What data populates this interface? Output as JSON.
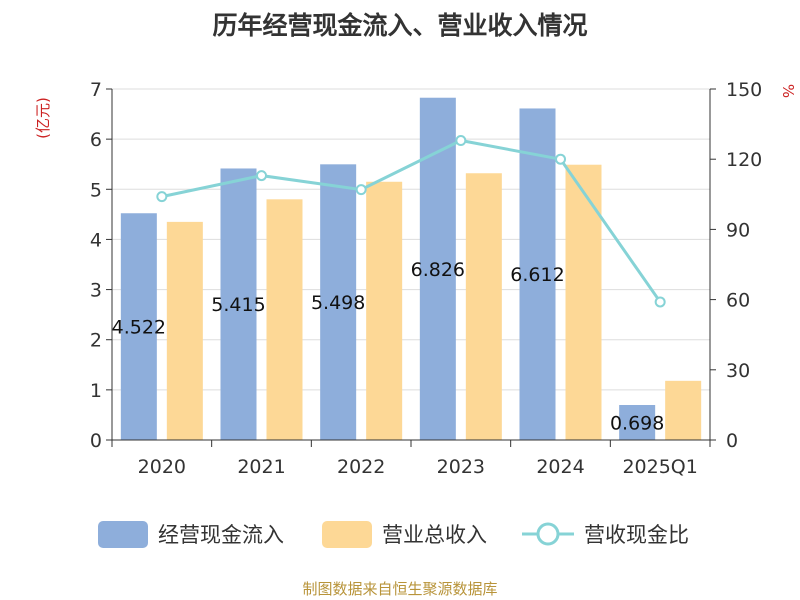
{
  "chart_data": {
    "type": "bar",
    "title": "历年经营现金流入、营业收入情况",
    "categories": [
      "2020",
      "2021",
      "2022",
      "2023",
      "2024",
      "2025Q1"
    ],
    "series": [
      {
        "name": "经营现金流入",
        "kind": "bar",
        "axis": "left",
        "color": "#8eaedb",
        "values": [
          4.522,
          5.415,
          5.498,
          6.826,
          6.612,
          0.698
        ],
        "labels": [
          "4.522",
          "5.415",
          "5.498",
          "6.826",
          "6.612",
          "0.698"
        ]
      },
      {
        "name": "营业总收入",
        "kind": "bar",
        "axis": "left",
        "color": "#fdd896",
        "values": [
          4.35,
          4.8,
          5.15,
          5.32,
          5.49,
          1.18
        ]
      },
      {
        "name": "营收现金比",
        "kind": "line",
        "axis": "right",
        "color": "#86d3d6",
        "values": [
          104,
          113,
          107,
          128,
          120,
          59
        ]
      }
    ],
    "ylabel_left": "(亿元)",
    "ylabel_right": "%",
    "ylim_left": [
      0,
      7
    ],
    "yticks_left": [
      "0",
      "1",
      "2",
      "3",
      "4",
      "5",
      "6",
      "7"
    ],
    "ylim_right": [
      0,
      150
    ],
    "yticks_right": [
      "0",
      "30",
      "60",
      "90",
      "120",
      "150"
    ],
    "grid": true,
    "legend_position": "bottom",
    "source": "制图数据来自恒生聚源数据库",
    "colors": {
      "axis_label": "#cc2222",
      "source": "#b8943a"
    }
  }
}
